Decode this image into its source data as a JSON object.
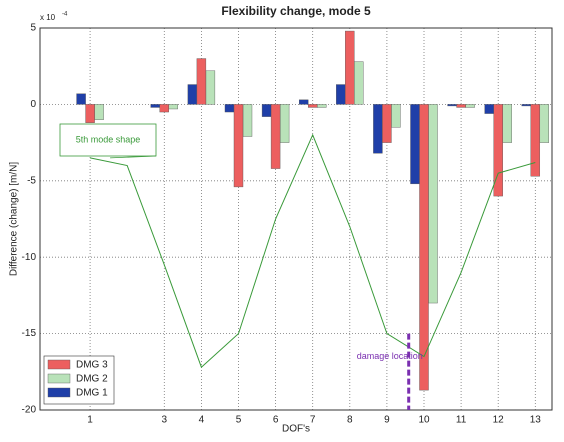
{
  "chart_data": {
    "type": "bar",
    "title": "Flexibility change, mode 5",
    "x_label": "DOF's",
    "y_label": "Difference (change) [m/N]",
    "y_multiplier": {
      "base": "x 10",
      "exponent": "-4"
    },
    "x": [
      1,
      3,
      4,
      5,
      6,
      7,
      8,
      9,
      10,
      11,
      12,
      13
    ],
    "series": [
      {
        "name": "DMG 1",
        "color": "#1f3fa8",
        "values": [
          0.7,
          -0.2,
          1.3,
          -0.5,
          -0.8,
          0.3,
          1.3,
          -3.2,
          -5.2,
          -0.1,
          -0.6,
          -0.1
        ]
      },
      {
        "name": "DMG 2",
        "color": "#b9e2b9",
        "values": [
          -1.0,
          -0.3,
          2.2,
          -2.1,
          -2.5,
          -0.2,
          2.8,
          -1.5,
          -13.0,
          -0.2,
          -2.5,
          -2.5
        ]
      },
      {
        "name": "DMG 3",
        "color": "#ec5f5f",
        "values": [
          -1.2,
          -0.5,
          3.0,
          -5.4,
          -4.2,
          -0.2,
          4.8,
          -2.5,
          -18.7,
          -0.2,
          -6.0,
          -4.7
        ]
      }
    ],
    "mode_shape": {
      "label": "5th mode shape",
      "color": "#3a9a3a",
      "x": [
        1,
        2,
        3,
        4,
        5,
        6,
        7,
        8,
        9,
        10,
        11,
        12,
        13
      ],
      "values": [
        -3.5,
        -4.0,
        -10.5,
        -17.2,
        -15.0,
        -7.5,
        -2.0,
        -8.0,
        -15.0,
        -16.5,
        -11.0,
        -4.5,
        -3.8
      ]
    },
    "damage_location": {
      "label": "damage location",
      "x": 10,
      "color": "#7a2fb0"
    },
    "xlim": [
      -0.35,
      13.45
    ],
    "xticks": [
      1,
      3,
      4,
      5,
      6,
      7,
      8,
      9,
      10,
      11,
      12,
      13
    ],
    "ylim": [
      -20,
      5
    ],
    "yticks": [
      5,
      0,
      -5,
      -10,
      -15,
      -20
    ],
    "grid": true,
    "legend": "lower-left"
  }
}
